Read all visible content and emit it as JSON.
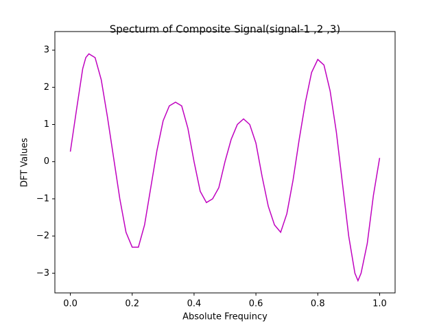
{
  "chart_data": {
    "type": "line",
    "title": "Specturm of Composite Signal(signal-1 ,2 ,3)",
    "x_label": "Absolute Frequincy",
    "y_label": "DFT Values",
    "x": [
      0.0,
      0.02,
      0.04,
      0.05,
      0.06,
      0.08,
      0.1,
      0.12,
      0.14,
      0.16,
      0.18,
      0.2,
      0.22,
      0.24,
      0.26,
      0.28,
      0.3,
      0.32,
      0.34,
      0.36,
      0.38,
      0.4,
      0.42,
      0.44,
      0.46,
      0.48,
      0.5,
      0.52,
      0.54,
      0.56,
      0.58,
      0.6,
      0.62,
      0.64,
      0.66,
      0.68,
      0.7,
      0.72,
      0.74,
      0.76,
      0.78,
      0.8,
      0.82,
      0.84,
      0.86,
      0.88,
      0.9,
      0.92,
      0.93,
      0.94,
      0.96,
      0.98,
      1.0
    ],
    "series": [
      {
        "name": "DFT",
        "color": "#bf00bf",
        "values": [
          0.27,
          1.4,
          2.5,
          2.8,
          2.9,
          2.8,
          2.2,
          1.2,
          0.1,
          -1.0,
          -1.9,
          -2.3,
          -2.3,
          -1.7,
          -0.7,
          0.3,
          1.1,
          1.5,
          1.6,
          1.5,
          0.9,
          0.0,
          -0.8,
          -1.1,
          -1.0,
          -0.7,
          0.0,
          0.6,
          1.0,
          1.15,
          1.0,
          0.5,
          -0.4,
          -1.2,
          -1.7,
          -1.9,
          -1.4,
          -0.5,
          0.6,
          1.6,
          2.4,
          2.75,
          2.6,
          1.9,
          0.8,
          -0.6,
          -2.0,
          -3.0,
          -3.2,
          -3.0,
          -2.2,
          -0.9,
          0.1
        ]
      }
    ],
    "xlim": [
      -0.05,
      1.05
    ],
    "xticks": [
      {
        "value": 0,
        "label": "0.0"
      },
      0.2,
      0.4,
      0.6,
      0.8,
      {
        "value": 1,
        "label": "1.0"
      }
    ],
    "ylim": [
      -3.53,
      3.5
    ],
    "yticks": [
      {
        "value": -3,
        "label": "−3"
      },
      {
        "value": -2,
        "label": "−2"
      },
      {
        "value": -1,
        "label": "−1"
      },
      0,
      1,
      2,
      3
    ],
    "grid": false
  }
}
